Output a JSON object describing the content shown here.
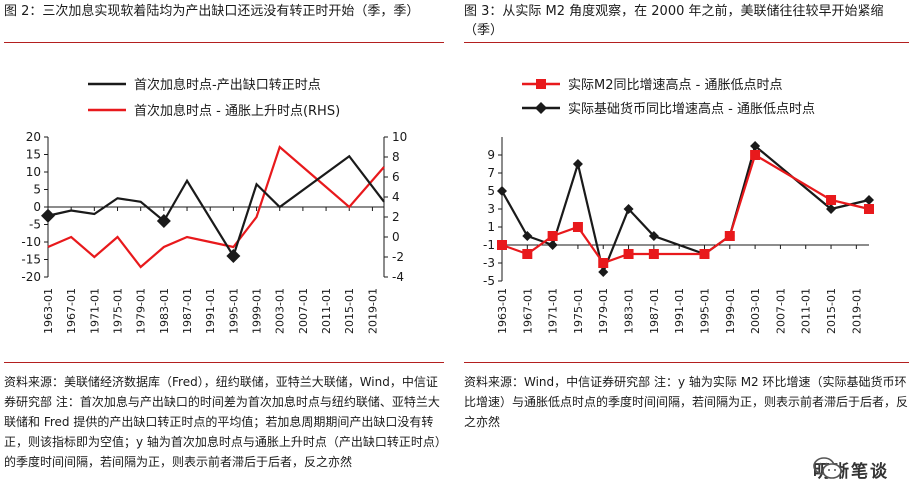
{
  "left": {
    "title": "图 2：三次加息实现软着陆均为产出缺口还远没有转正时开始（季，季）",
    "source": "资料来源：美联储经济数据库（Fred），纽约联储，亚特兰大联储，Wind，中信证券研究部  注：首次加息与产出缺口的时间差为首次加息时点与纽约联储、亚特兰大联储和 Fred 提供的产出缺口转正时点的平均值；若加息周期期间产出缺口没有转正，则该指标即为空值；y 轴为首次加息时点与通胀上升时点（产出缺口转正时点）的季度时间间隔，若间隔为正，则表示前者滞后于后者，反之亦然"
  },
  "right": {
    "title": "图 3：从实际 M2 角度观察，在 2000 年之前，美联储往往较早开始紧缩（季）",
    "source": "资料来源：Wind，中信证券研究部  注：y 轴为实际 M2 环比增速（实际基础货币环比增速）与通胀低点时点的季度时间间隔，若间隔为正，则表示前者滞后于后者，反之亦然"
  },
  "watermark": {
    "text": "明晰笔谈",
    "icon": "wechat-icon"
  },
  "chart_data": [
    {
      "type": "line",
      "x": [
        "1963-01",
        "1967-01",
        "1971-01",
        "1975-01",
        "1979-01",
        "1983-01",
        "1987-01",
        "1991-01",
        "1995-01",
        "1999-01",
        "2003-01",
        "2007-01",
        "2011-01",
        "2015-01",
        "2019-01"
      ],
      "series": [
        {
          "name": "首次加息时点-产出缺口转正时点",
          "axis": "left",
          "color": "#1a1a1a",
          "points": [
            [
              1963,
              -2.5
            ],
            [
              1967,
              -1
            ],
            [
              1971,
              -2
            ],
            [
              1975,
              2.5
            ],
            [
              1979,
              1.5
            ],
            [
              1983,
              -4
            ],
            [
              1987,
              7.5
            ],
            [
              1995,
              -14
            ],
            [
              1999,
              6.5
            ],
            [
              2003,
              0
            ],
            [
              2015,
              14.5
            ],
            [
              2021,
              1.5
            ]
          ],
          "markers": [
            [
              1963,
              -2.5
            ],
            [
              1983,
              -4
            ],
            [
              1995,
              -14
            ]
          ]
        },
        {
          "name": "首次加息时点 - 通胀上升时点(RHS)",
          "axis": "right",
          "color": "#e8191c",
          "points": [
            [
              1963,
              -1
            ],
            [
              1967,
              0
            ],
            [
              1971,
              -2
            ],
            [
              1975,
              0
            ],
            [
              1979,
              -3
            ],
            [
              1983,
              -1
            ],
            [
              1987,
              0
            ],
            [
              1991,
              -0.5
            ],
            [
              1995,
              -1
            ],
            [
              1999,
              2
            ],
            [
              2003,
              9
            ],
            [
              2009,
              6
            ],
            [
              2015,
              3
            ],
            [
              2021,
              7
            ]
          ]
        }
      ],
      "ylim_left": [
        -20,
        20
      ],
      "yticks_left": [
        -20,
        -15,
        -10,
        -5,
        0,
        5,
        10,
        15,
        20
      ],
      "ylim_right": [
        -4,
        10
      ],
      "yticks_right": [
        -4,
        -2,
        0,
        2,
        4,
        6,
        8,
        10
      ]
    },
    {
      "type": "line",
      "x": [
        "1963-01",
        "1967-01",
        "1971-01",
        "1975-01",
        "1979-01",
        "1983-01",
        "1987-01",
        "1991-01",
        "1995-01",
        "1999-01",
        "2003-01",
        "2007-01",
        "2011-01",
        "2015-01",
        "2019-01"
      ],
      "series": [
        {
          "name": "实际M2同比增速高点 - 通胀低点时点",
          "color": "#e8191c",
          "marker": "square",
          "points": [
            [
              1963,
              -1
            ],
            [
              1967,
              -2
            ],
            [
              1971,
              0
            ],
            [
              1975,
              1
            ],
            [
              1979,
              -3
            ],
            [
              1983,
              -2
            ],
            [
              1987,
              -2
            ],
            [
              1995,
              -2
            ],
            [
              1999,
              0
            ],
            [
              2003,
              9
            ],
            [
              2015,
              4
            ],
            [
              2021,
              3
            ]
          ]
        },
        {
          "name": "实际基础货币同比增速高点 - 通胀低点时点",
          "color": "#1a1a1a",
          "marker": "diamond",
          "points": [
            [
              1963,
              5
            ],
            [
              1967,
              0
            ],
            [
              1971,
              -1
            ],
            [
              1975,
              8
            ],
            [
              1979,
              -4
            ],
            [
              1983,
              3
            ],
            [
              1987,
              0
            ],
            [
              1995,
              -2
            ],
            [
              1999,
              0
            ],
            [
              2003,
              10
            ],
            [
              2015,
              3
            ],
            [
              2021,
              4
            ]
          ]
        }
      ],
      "ylim": [
        -5,
        11
      ],
      "yticks": [
        -5,
        -3,
        -1,
        1,
        3,
        5,
        7,
        9
      ]
    }
  ]
}
